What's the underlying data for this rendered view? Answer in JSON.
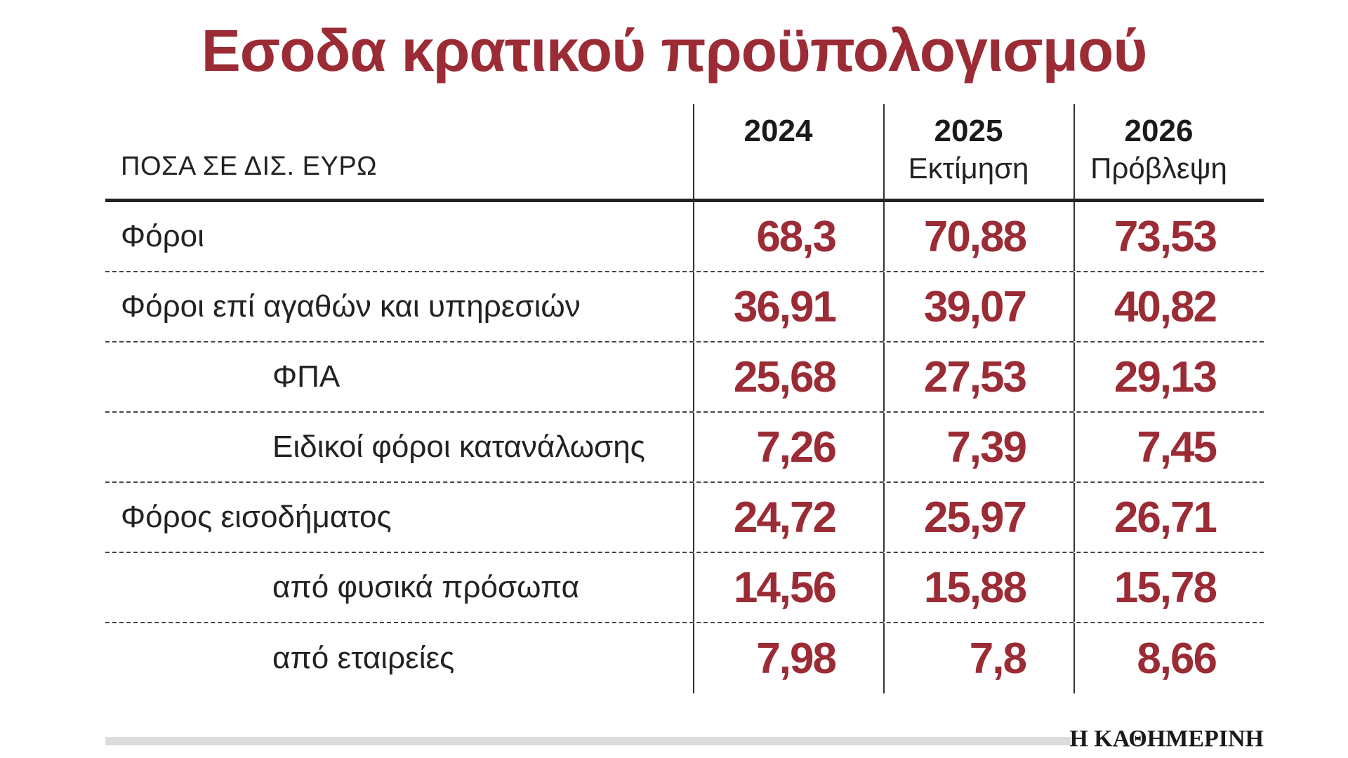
{
  "title": "Εσοδα κρατικού προϋπολογισμού",
  "unit_label": "ΠΟΣΑ ΣΕ ΔΙΣ. ΕΥΡΩ",
  "brand": "Η ΚΑΘΗΜΕΡΙΝΗ",
  "colors": {
    "accent": "#9b2b35",
    "text": "#222222",
    "footer_bar": "#dcdcdc"
  },
  "columns": [
    {
      "year": "2024",
      "sub": ""
    },
    {
      "year": "2025",
      "sub": "Εκτίμηση"
    },
    {
      "year": "2026",
      "sub": "Πρόβλεψη"
    }
  ],
  "chart_data": {
    "type": "table",
    "title": "Εσοδα κρατικού προϋπολογισμού",
    "unit": "ΠΟΣΑ ΣΕ ΔΙΣ. ΕΥΡΩ",
    "columns": [
      "2024",
      "2025 Εκτίμηση",
      "2026 Πρόβλεψη"
    ],
    "rows": [
      {
        "label": "Φόροι",
        "indent": false,
        "values": [
          "68,3",
          "70,88",
          "73,53"
        ]
      },
      {
        "label": "Φόροι επί αγαθών και υπηρεσιών",
        "indent": false,
        "values": [
          "36,91",
          "39,07",
          "40,82"
        ]
      },
      {
        "label": "ΦΠΑ",
        "indent": true,
        "values": [
          "25,68",
          "27,53",
          "29,13"
        ]
      },
      {
        "label": "Ειδικοί φόροι κατανάλωσης",
        "indent": true,
        "values": [
          "7,26",
          "7,39",
          "7,45"
        ]
      },
      {
        "label": "Φόρος εισοδήματος",
        "indent": false,
        "values": [
          "24,72",
          "25,97",
          "26,71"
        ]
      },
      {
        "label": "από φυσικά πρόσωπα",
        "indent": true,
        "values": [
          "14,56",
          "15,88",
          "15,78"
        ]
      },
      {
        "label": "από εταιρείες",
        "indent": true,
        "values": [
          "7,98",
          "7,8",
          "8,66"
        ]
      }
    ]
  }
}
